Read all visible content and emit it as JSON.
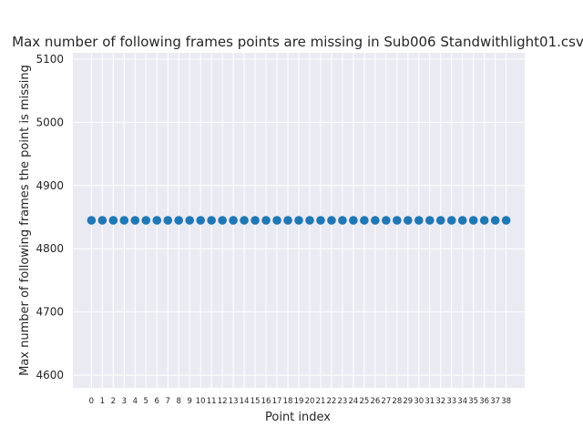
{
  "chart_data": {
    "type": "scatter",
    "title": "Max number of following frames points are missing in Sub006 Standwithlight01.csv",
    "xlabel": "Point index",
    "ylabel": "Max number of following frames the point is missing",
    "x": [
      0,
      1,
      2,
      3,
      4,
      5,
      6,
      7,
      8,
      9,
      10,
      11,
      12,
      13,
      14,
      15,
      16,
      17,
      18,
      19,
      20,
      21,
      22,
      23,
      24,
      25,
      26,
      27,
      28,
      29,
      30,
      31,
      32,
      33,
      34,
      35,
      36,
      37,
      38
    ],
    "y": [
      4845,
      4845,
      4845,
      4845,
      4845,
      4845,
      4845,
      4845,
      4845,
      4845,
      4845,
      4845,
      4845,
      4845,
      4845,
      4845,
      4845,
      4845,
      4845,
      4845,
      4845,
      4845,
      4845,
      4845,
      4845,
      4845,
      4845,
      4845,
      4845,
      4845,
      4845,
      4845,
      4845,
      4845,
      4845,
      4845,
      4845,
      4845,
      4845
    ],
    "ylim": [
      4580,
      5110
    ],
    "xlim": [
      -1.7,
      39.7
    ],
    "yticks": [
      4600,
      4700,
      4800,
      4900,
      5000,
      5100
    ],
    "grid": true,
    "background": "#eaeaf2",
    "marker_color": "#1f77b4"
  }
}
